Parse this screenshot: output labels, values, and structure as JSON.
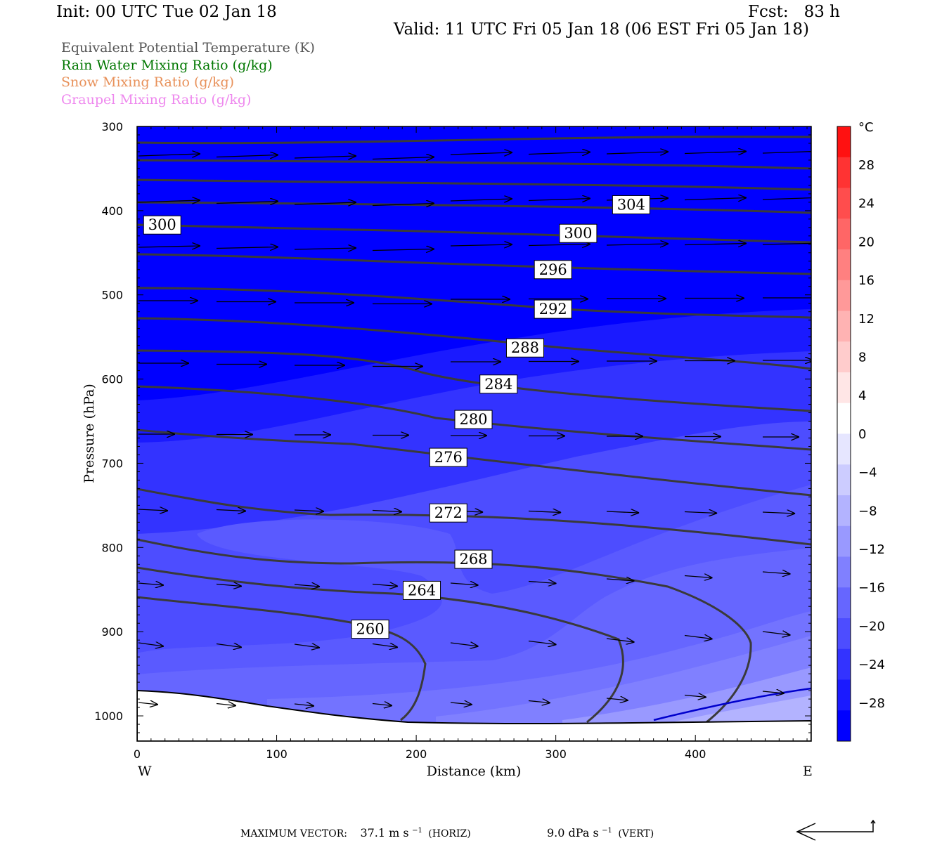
{
  "header": {
    "init": "Init: 00 UTC Tue 02 Jan 18",
    "fcst": "Fcst:   83 h",
    "valid": "Valid: 11 UTC Fri 05 Jan 18 (06 EST Fri 05 Jan 18)"
  },
  "legend": [
    {
      "text": "Equivalent Potential Temperature (K)",
      "color": "#555555"
    },
    {
      "text": "Rain Water Mixing Ratio (g/kg)",
      "color": "#007700"
    },
    {
      "text": "Snow Mixing Ratio (g/kg)",
      "color": "#e8915a"
    },
    {
      "text": "Graupel Mixing Ratio (g/kg)",
      "color": "#ee88ee"
    }
  ],
  "chart_data": {
    "type": "cross-section",
    "xlabel": "Distance (km)",
    "ylabel": "Pressure (hPa)",
    "xlim": [
      0,
      483
    ],
    "ylim": [
      1030,
      300
    ],
    "xticks": [
      0,
      100,
      200,
      300,
      400
    ],
    "yticks": [
      300,
      400,
      500,
      600,
      700,
      800,
      900,
      1000
    ],
    "west_label": "W",
    "east_label": "E",
    "contour_labels": [
      {
        "value": "300",
        "x": 18,
        "p": 417
      },
      {
        "value": "304",
        "x": 354,
        "p": 393
      },
      {
        "value": "300",
        "x": 316,
        "p": 427
      },
      {
        "value": "296",
        "x": 298,
        "p": 470
      },
      {
        "value": "292",
        "x": 298,
        "p": 517
      },
      {
        "value": "288",
        "x": 278,
        "p": 563
      },
      {
        "value": "284",
        "x": 259,
        "p": 606
      },
      {
        "value": "280",
        "x": 241,
        "p": 648
      },
      {
        "value": "276",
        "x": 223,
        "p": 693
      },
      {
        "value": "272",
        "x": 223,
        "p": 759
      },
      {
        "value": "268",
        "x": 241,
        "p": 814
      },
      {
        "value": "264",
        "x": 204,
        "p": 851
      },
      {
        "value": "260",
        "x": 167,
        "p": 897
      }
    ],
    "colorbar": {
      "unit": "°C",
      "labels": [
        "28",
        "24",
        "20",
        "16",
        "12",
        "8",
        "4",
        "0",
        "−4",
        "−8",
        "−12",
        "−16",
        "−20",
        "−24",
        "−28"
      ],
      "colors_top_to_bottom": [
        "#ff1111",
        "#ff3333",
        "#ff4d4d",
        "#ff6666",
        "#ff8080",
        "#ff9999",
        "#ffb3b3",
        "#ffcccc",
        "#ffe6e6",
        "#ffffff",
        "#e6e6ff",
        "#ccccff",
        "#b3b3ff",
        "#9999ff",
        "#8080ff",
        "#6666ff",
        "#4d4dff",
        "#3333ff",
        "#1a1aff",
        "#0000ff"
      ]
    }
  },
  "footer": {
    "max_vector_prefix": "MAXIMUM VECTOR:",
    "horiz_value": "37.1 m s",
    "horiz_exp": "−1",
    "horiz_tag": "(HORIZ)",
    "vert_value": "9.0 dPa s",
    "vert_exp": "−1",
    "vert_tag": "(VERT)"
  }
}
